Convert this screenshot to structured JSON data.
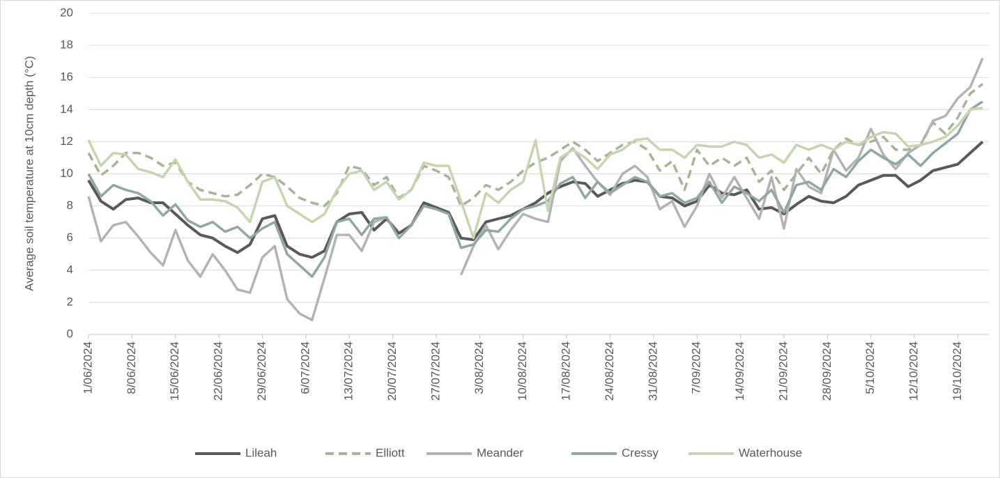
{
  "chart_data": {
    "type": "line",
    "y_label": "Average soil temperature at 10cm depth (°C)",
    "x": [
      "1/06/2024",
      "3/06/2024",
      "5/06/2024",
      "7/06/2024",
      "9/06/2024",
      "11/06/2024",
      "13/06/2024",
      "15/06/2024",
      "17/06/2024",
      "19/06/2024",
      "21/06/2024",
      "23/06/2024",
      "25/06/2024",
      "27/06/2024",
      "29/06/2024",
      "1/07/2024",
      "3/07/2024",
      "5/07/2024",
      "7/07/2024",
      "9/07/2024",
      "11/07/2024",
      "13/07/2024",
      "15/07/2024",
      "17/07/2024",
      "19/07/2024",
      "21/07/2024",
      "23/07/2024",
      "25/07/2024",
      "27/07/2024",
      "29/07/2024",
      "31/07/2024",
      "2/08/2024",
      "4/08/2024",
      "6/08/2024",
      "8/08/2024",
      "10/08/2024",
      "12/08/2024",
      "14/08/2024",
      "16/08/2024",
      "18/08/2024",
      "20/08/2024",
      "22/08/2024",
      "24/08/2024",
      "26/08/2024",
      "28/08/2024",
      "30/08/2024",
      "1/09/2024",
      "3/09/2024",
      "5/09/2024",
      "7/09/2024",
      "9/09/2024",
      "11/09/2024",
      "13/09/2024",
      "15/09/2024",
      "17/09/2024",
      "19/09/2024",
      "21/09/2024",
      "23/09/2024",
      "25/09/2024",
      "27/09/2024",
      "29/09/2024",
      "1/10/2024",
      "3/10/2024",
      "5/10/2024",
      "7/10/2024",
      "9/10/2024",
      "11/10/2024",
      "13/10/2024",
      "15/10/2024",
      "17/10/2024",
      "19/10/2024",
      "21/10/2024",
      "23/10/2024"
    ],
    "xlim": [
      "1/06/2024",
      "24/10/2024"
    ],
    "xticks": [
      "1/06/2024",
      "8/06/2024",
      "15/06/2024",
      "22/06/2024",
      "29/06/2024",
      "6/07/2024",
      "13/07/2024",
      "20/07/2024",
      "27/07/2024",
      "3/08/2024",
      "10/08/2024",
      "17/08/2024",
      "24/08/2024",
      "31/08/2024",
      "7/09/2024",
      "14/09/2024",
      "21/09/2024",
      "28/09/2024",
      "5/10/2024",
      "12/10/2024",
      "19/10/2024"
    ],
    "ylim": [
      0,
      20
    ],
    "yticks": [
      0,
      2,
      4,
      6,
      8,
      10,
      12,
      14,
      16,
      18,
      20
    ],
    "grid": true,
    "legend": "bottom",
    "series": [
      {
        "name": "Lileah",
        "color": "#595959",
        "line_style": "solid",
        "values": [
          9.6,
          8.3,
          7.8,
          8.4,
          8.5,
          8.2,
          8.2,
          7.5,
          6.8,
          6.2,
          6.0,
          5.5,
          5.1,
          5.6,
          7.2,
          7.4,
          5.5,
          5.0,
          4.8,
          5.2,
          7.0,
          7.5,
          7.6,
          6.5,
          7.2,
          6.3,
          6.8,
          8.2,
          7.9,
          7.6,
          6.0,
          5.9,
          7.0,
          7.2,
          7.4,
          7.8,
          8.2,
          8.8,
          9.2,
          9.5,
          9.4,
          8.6,
          9.0,
          9.4,
          9.6,
          9.5,
          8.6,
          8.5,
          8.0,
          8.3,
          9.3,
          8.8,
          8.7,
          9.0,
          7.8,
          7.9,
          7.5,
          8.1,
          8.6,
          8.3,
          8.2,
          8.6,
          9.3,
          9.6,
          9.9,
          9.9,
          9.2,
          9.6,
          10.2,
          10.4,
          10.6,
          11.3,
          12.0
        ]
      },
      {
        "name": "Elliott",
        "color": "#a9b496",
        "line_style": "dashed",
        "values": [
          11.3,
          9.9,
          10.5,
          11.3,
          11.3,
          11.0,
          10.5,
          10.7,
          9.5,
          9.0,
          8.8,
          8.6,
          8.7,
          9.3,
          10.0,
          9.8,
          9.2,
          8.5,
          8.2,
          8.0,
          8.8,
          10.5,
          10.3,
          9.3,
          9.8,
          8.5,
          9.0,
          10.5,
          10.2,
          9.8,
          8.0,
          8.5,
          9.3,
          9.0,
          9.5,
          10.2,
          10.7,
          11.0,
          11.5,
          12.0,
          11.5,
          10.8,
          11.3,
          11.8,
          12.0,
          11.5,
          10.2,
          10.8,
          9.0,
          11.5,
          10.5,
          11.0,
          10.5,
          11.0,
          9.5,
          10.2,
          9.0,
          10.0,
          11.0,
          10.0,
          11.5,
          12.2,
          11.8,
          12.0,
          12.3,
          11.5,
          11.5,
          11.8,
          13.2,
          12.5,
          13.5,
          15.0,
          15.6
        ]
      },
      {
        "name": "Meander",
        "color": "#b3b3b3",
        "line_style": "solid",
        "values": [
          8.6,
          5.8,
          6.8,
          7.0,
          6.1,
          5.1,
          4.3,
          6.5,
          4.6,
          3.6,
          5.0,
          4.0,
          2.8,
          2.6,
          4.8,
          5.5,
          2.2,
          1.3,
          0.9,
          3.5,
          6.2,
          6.2,
          5.2,
          7.0,
          7.3,
          null,
          null,
          null,
          null,
          null,
          3.7,
          5.5,
          6.8,
          5.3,
          6.5,
          7.5,
          7.2,
          7.0,
          10.8,
          11.6,
          10.5,
          9.5,
          8.7,
          10.0,
          10.5,
          9.8,
          7.8,
          8.3,
          6.7,
          8.0,
          10.0,
          8.5,
          9.8,
          8.5,
          7.2,
          9.8,
          6.6,
          10.3,
          9.2,
          8.8,
          11.5,
          10.2,
          11.0,
          12.8,
          11.2,
          10.3,
          11.3,
          11.8,
          13.3,
          13.6,
          14.7,
          15.4,
          17.2
        ]
      },
      {
        "name": "Cressy",
        "color": "#8fa8a4",
        "line_style": "solid",
        "values": [
          10.0,
          8.6,
          9.3,
          9.0,
          8.8,
          8.3,
          7.4,
          8.1,
          7.1,
          6.7,
          7.0,
          6.4,
          6.7,
          6.0,
          6.6,
          7.0,
          5.0,
          4.3,
          3.6,
          4.8,
          7.0,
          7.2,
          6.2,
          7.2,
          7.3,
          6.0,
          6.8,
          8.0,
          7.8,
          7.5,
          5.4,
          5.6,
          6.5,
          6.4,
          7.2,
          7.8,
          8.0,
          8.3,
          9.4,
          9.8,
          8.5,
          9.5,
          8.8,
          9.3,
          9.8,
          9.5,
          8.6,
          8.8,
          8.2,
          8.5,
          9.5,
          8.2,
          9.2,
          8.8,
          8.3,
          9.0,
          7.6,
          9.3,
          9.5,
          9.0,
          10.3,
          9.8,
          10.8,
          11.5,
          11.0,
          10.6,
          11.2,
          10.5,
          11.3,
          11.9,
          12.5,
          14.0,
          14.5
        ]
      },
      {
        "name": "Waterhouse",
        "color": "#c5d5ad",
        "line_style": "solid",
        "values": [
          12.1,
          10.5,
          11.3,
          11.2,
          10.3,
          10.1,
          9.8,
          10.9,
          9.5,
          8.4,
          8.4,
          8.3,
          7.9,
          7.0,
          9.5,
          9.8,
          8.0,
          7.5,
          7.0,
          7.5,
          9.0,
          10.0,
          10.2,
          9.0,
          9.5,
          8.4,
          9.0,
          10.7,
          10.5,
          10.5,
          8.3,
          6.0,
          8.8,
          8.2,
          9.0,
          9.5,
          12.1,
          7.7,
          11.0,
          11.5,
          11.0,
          10.3,
          11.2,
          11.5,
          12.1,
          12.2,
          11.5,
          11.5,
          11.0,
          11.8,
          11.7,
          11.7,
          12.0,
          11.8,
          11.0,
          11.2,
          10.7,
          11.8,
          11.5,
          11.8,
          11.5,
          12.0,
          11.8,
          12.3,
          12.6,
          12.5,
          11.7,
          11.8,
          12.0,
          12.3,
          13.0,
          14.0,
          14.1
        ]
      }
    ]
  }
}
